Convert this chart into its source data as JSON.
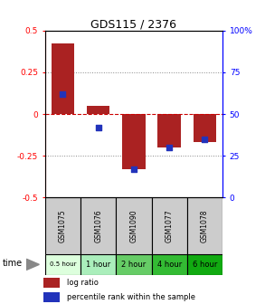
{
  "title": "GDS115 / 2376",
  "categories": [
    "GSM1075",
    "GSM1076",
    "GSM1090",
    "GSM1077",
    "GSM1078"
  ],
  "time_labels": [
    "0.5 hour",
    "1 hour",
    "2 hour",
    "4 hour",
    "6 hour"
  ],
  "log_ratios": [
    0.42,
    0.05,
    -0.33,
    -0.2,
    -0.17
  ],
  "percentile_ranks": [
    62,
    42,
    17,
    30,
    35
  ],
  "ylim": [
    -0.5,
    0.5
  ],
  "yticks": [
    -0.5,
    -0.25,
    0,
    0.25,
    0.5
  ],
  "ytick_labels": [
    "-0.5",
    "-0.25",
    "0",
    "0.25",
    "0.5"
  ],
  "right_yticks": [
    0,
    25,
    50,
    75,
    100
  ],
  "bar_color": "#aa2222",
  "dot_color": "#2233bb",
  "zero_line_color": "#cc0000",
  "grid_color": "#000000",
  "time_colors": [
    "#ddffdd",
    "#aaeebb",
    "#66cc66",
    "#33bb33",
    "#11aa11"
  ],
  "sample_bg": "#cccccc",
  "background_color": "#ffffff",
  "legend_log_ratio": "log ratio",
  "legend_percentile": "percentile rank within the sample"
}
